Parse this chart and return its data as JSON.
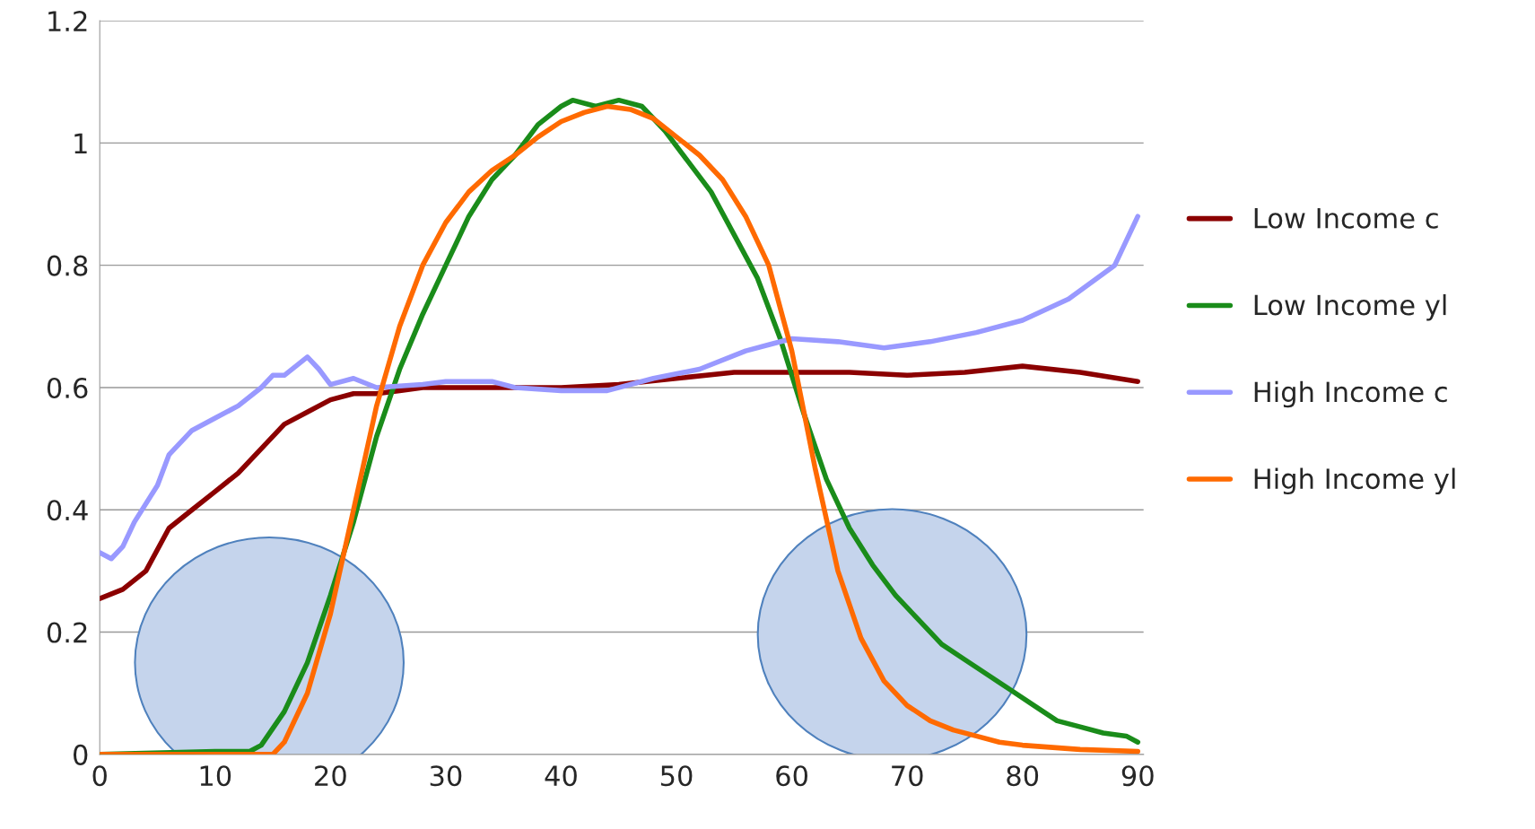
{
  "chart_data": {
    "type": "line",
    "xlim": [
      0,
      90.5
    ],
    "ylim": [
      0,
      1.2
    ],
    "xticks": [
      0,
      10,
      20,
      30,
      40,
      50,
      60,
      70,
      80,
      90
    ],
    "yticks": [
      0,
      0.2,
      0.4,
      0.6,
      0.8,
      1,
      1.2
    ],
    "grid": "y",
    "legend": "right",
    "marker": "none",
    "line_style": "solid",
    "series": [
      {
        "name": "Low Income c",
        "color": "#8b0000",
        "x": [
          0,
          2,
          4,
          6,
          8,
          10,
          12,
          14,
          16,
          18,
          20,
          22,
          24,
          26,
          28,
          30,
          35,
          40,
          45,
          50,
          55,
          60,
          65,
          70,
          75,
          80,
          85,
          90
        ],
        "values": [
          0.255,
          0.27,
          0.3,
          0.37,
          0.4,
          0.43,
          0.46,
          0.5,
          0.54,
          0.56,
          0.58,
          0.59,
          0.59,
          0.595,
          0.6,
          0.6,
          0.6,
          0.6,
          0.605,
          0.615,
          0.625,
          0.625,
          0.625,
          0.62,
          0.625,
          0.635,
          0.625,
          0.61
        ]
      },
      {
        "name": "Low Income yl",
        "color": "#1a8c1a",
        "x": [
          0,
          10,
          13,
          14,
          16,
          18,
          20,
          22,
          24,
          26,
          28,
          30,
          32,
          34,
          36,
          38,
          40,
          41,
          43,
          45,
          47,
          49,
          51,
          53,
          55,
          57,
          59,
          61,
          63,
          65,
          67,
          69,
          71,
          73,
          75,
          77,
          79,
          81,
          83,
          85,
          87,
          89,
          90
        ],
        "values": [
          0,
          0.005,
          0.005,
          0.015,
          0.07,
          0.15,
          0.26,
          0.38,
          0.52,
          0.63,
          0.72,
          0.8,
          0.88,
          0.94,
          0.98,
          1.03,
          1.06,
          1.07,
          1.06,
          1.07,
          1.06,
          1.02,
          0.97,
          0.92,
          0.85,
          0.78,
          0.68,
          0.56,
          0.45,
          0.37,
          0.31,
          0.26,
          0.22,
          0.18,
          0.155,
          0.13,
          0.105,
          0.08,
          0.055,
          0.045,
          0.035,
          0.03,
          0.02
        ]
      },
      {
        "name": "High Income c",
        "color": "#9999ff",
        "x": [
          0,
          1,
          2,
          3,
          5,
          6,
          8,
          10,
          12,
          14,
          15,
          16,
          18,
          19,
          20,
          22,
          24,
          28,
          30,
          34,
          36,
          40,
          44,
          48,
          52,
          56,
          58,
          60,
          64,
          68,
          72,
          76,
          80,
          84,
          88,
          89,
          90
        ],
        "values": [
          0.33,
          0.32,
          0.34,
          0.38,
          0.44,
          0.49,
          0.53,
          0.55,
          0.57,
          0.6,
          0.62,
          0.62,
          0.65,
          0.63,
          0.605,
          0.615,
          0.6,
          0.605,
          0.61,
          0.61,
          0.6,
          0.595,
          0.595,
          0.615,
          0.63,
          0.66,
          0.67,
          0.68,
          0.675,
          0.665,
          0.675,
          0.69,
          0.71,
          0.745,
          0.8,
          0.84,
          0.88
        ]
      },
      {
        "name": "High Income yl",
        "color": "#ff6a00",
        "x": [
          0,
          15,
          16,
          18,
          20,
          22,
          24,
          26,
          28,
          30,
          32,
          34,
          36,
          38,
          40,
          42,
          44,
          46,
          48,
          50,
          52,
          54,
          56,
          58,
          60,
          62,
          64,
          66,
          68,
          70,
          72,
          74,
          76,
          78,
          80,
          85,
          90
        ],
        "values": [
          0,
          0,
          0.02,
          0.1,
          0.23,
          0.4,
          0.57,
          0.7,
          0.8,
          0.87,
          0.92,
          0.955,
          0.98,
          1.01,
          1.035,
          1.05,
          1.06,
          1.055,
          1.04,
          1.01,
          0.98,
          0.94,
          0.88,
          0.8,
          0.66,
          0.47,
          0.3,
          0.19,
          0.12,
          0.08,
          0.055,
          0.04,
          0.03,
          0.02,
          0.015,
          0.008,
          0.005
        ]
      }
    ]
  }
}
